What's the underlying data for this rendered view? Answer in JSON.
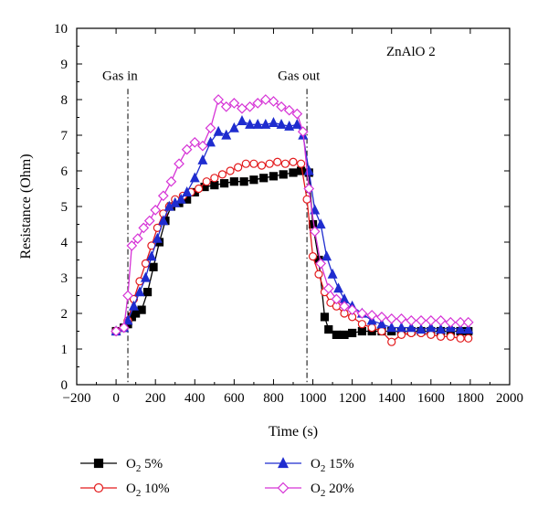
{
  "chart_data": {
    "type": "line",
    "title": "ZnAlO 2",
    "xlabel": "Time (s)",
    "ylabel": "Resistance (Ohm)",
    "xlim": [
      -200,
      2000
    ],
    "ylim": [
      0,
      10
    ],
    "xticks": [
      "−200",
      "0",
      "200",
      "400",
      "600",
      "800",
      "1000",
      "1200",
      "1400",
      "1600",
      "1800",
      "2000"
    ],
    "xtick_values": [
      -200,
      0,
      200,
      400,
      600,
      800,
      1000,
      1200,
      1400,
      1600,
      1800,
      2000
    ],
    "yticks": [
      "0",
      "1",
      "2",
      "3",
      "4",
      "5",
      "6",
      "7",
      "8",
      "9",
      "10"
    ],
    "ytick_values": [
      0,
      1,
      2,
      3,
      4,
      5,
      6,
      7,
      8,
      9,
      10
    ],
    "grid": false,
    "legend_position": "bottom",
    "annotations": [
      {
        "text": "Gas in",
        "x": 60
      },
      {
        "text": "Gas out",
        "x": 970
      }
    ],
    "series": [
      {
        "name": "O2 5%",
        "legend_main": "O",
        "legend_sub": "2",
        "legend_rest": " 5%",
        "color": "#000000",
        "marker": "square",
        "filled": true,
        "points": [
          [
            0,
            1.5
          ],
          [
            40,
            1.6
          ],
          [
            60,
            1.7
          ],
          [
            80,
            1.9
          ],
          [
            100,
            2.0
          ],
          [
            130,
            2.1
          ],
          [
            160,
            2.6
          ],
          [
            190,
            3.3
          ],
          [
            220,
            4.0
          ],
          [
            250,
            4.6
          ],
          [
            280,
            5.0
          ],
          [
            320,
            5.1
          ],
          [
            360,
            5.2
          ],
          [
            400,
            5.4
          ],
          [
            450,
            5.55
          ],
          [
            500,
            5.6
          ],
          [
            550,
            5.65
          ],
          [
            600,
            5.7
          ],
          [
            650,
            5.7
          ],
          [
            700,
            5.75
          ],
          [
            750,
            5.8
          ],
          [
            800,
            5.85
          ],
          [
            850,
            5.9
          ],
          [
            900,
            5.95
          ],
          [
            940,
            6.0
          ],
          [
            980,
            5.95
          ],
          [
            1000,
            4.5
          ],
          [
            1030,
            3.5
          ],
          [
            1060,
            1.9
          ],
          [
            1080,
            1.55
          ],
          [
            1120,
            1.4
          ],
          [
            1160,
            1.4
          ],
          [
            1200,
            1.45
          ],
          [
            1250,
            1.5
          ],
          [
            1300,
            1.5
          ],
          [
            1350,
            1.5
          ],
          [
            1400,
            1.5
          ],
          [
            1450,
            1.5
          ],
          [
            1500,
            1.5
          ],
          [
            1550,
            1.5
          ],
          [
            1600,
            1.5
          ],
          [
            1650,
            1.5
          ],
          [
            1700,
            1.5
          ],
          [
            1750,
            1.5
          ],
          [
            1790,
            1.5
          ]
        ]
      },
      {
        "name": "O2 10%",
        "legend_main": "O",
        "legend_sub": "2",
        "legend_rest": " 10%",
        "color": "#e31a1c",
        "marker": "circle",
        "filled": false,
        "points": [
          [
            0,
            1.5
          ],
          [
            40,
            1.6
          ],
          [
            60,
            1.8
          ],
          [
            90,
            2.4
          ],
          [
            120,
            2.9
          ],
          [
            150,
            3.4
          ],
          [
            180,
            3.9
          ],
          [
            210,
            4.4
          ],
          [
            240,
            4.8
          ],
          [
            270,
            5.0
          ],
          [
            300,
            5.2
          ],
          [
            340,
            5.3
          ],
          [
            380,
            5.4
          ],
          [
            420,
            5.5
          ],
          [
            460,
            5.7
          ],
          [
            500,
            5.8
          ],
          [
            540,
            5.9
          ],
          [
            580,
            6.0
          ],
          [
            620,
            6.1
          ],
          [
            660,
            6.2
          ],
          [
            700,
            6.2
          ],
          [
            740,
            6.15
          ],
          [
            780,
            6.2
          ],
          [
            820,
            6.25
          ],
          [
            860,
            6.2
          ],
          [
            900,
            6.25
          ],
          [
            940,
            6.2
          ],
          [
            970,
            5.2
          ],
          [
            1000,
            3.6
          ],
          [
            1030,
            3.1
          ],
          [
            1060,
            2.6
          ],
          [
            1090,
            2.3
          ],
          [
            1120,
            2.2
          ],
          [
            1160,
            2.0
          ],
          [
            1200,
            1.9
          ],
          [
            1250,
            1.7
          ],
          [
            1300,
            1.6
          ],
          [
            1350,
            1.5
          ],
          [
            1400,
            1.2
          ],
          [
            1450,
            1.4
          ],
          [
            1500,
            1.45
          ],
          [
            1550,
            1.45
          ],
          [
            1600,
            1.4
          ],
          [
            1650,
            1.35
          ],
          [
            1700,
            1.35
          ],
          [
            1750,
            1.3
          ],
          [
            1790,
            1.3
          ]
        ]
      },
      {
        "name": "O2 15%",
        "legend_main": "O",
        "legend_sub": "2",
        "legend_rest": " 15%",
        "color": "#1f2ccf",
        "marker": "triangle",
        "filled": true,
        "points": [
          [
            0,
            1.5
          ],
          [
            40,
            1.6
          ],
          [
            60,
            1.8
          ],
          [
            90,
            2.2
          ],
          [
            120,
            2.6
          ],
          [
            150,
            3.0
          ],
          [
            180,
            3.6
          ],
          [
            210,
            4.1
          ],
          [
            240,
            4.6
          ],
          [
            270,
            5.0
          ],
          [
            300,
            5.1
          ],
          [
            330,
            5.2
          ],
          [
            360,
            5.4
          ],
          [
            400,
            5.8
          ],
          [
            440,
            6.3
          ],
          [
            480,
            6.8
          ],
          [
            520,
            7.1
          ],
          [
            560,
            7.0
          ],
          [
            600,
            7.2
          ],
          [
            640,
            7.4
          ],
          [
            680,
            7.3
          ],
          [
            720,
            7.3
          ],
          [
            760,
            7.3
          ],
          [
            800,
            7.35
          ],
          [
            840,
            7.3
          ],
          [
            880,
            7.25
          ],
          [
            920,
            7.3
          ],
          [
            950,
            7.0
          ],
          [
            980,
            6.0
          ],
          [
            1010,
            4.9
          ],
          [
            1040,
            4.5
          ],
          [
            1070,
            3.6
          ],
          [
            1100,
            3.1
          ],
          [
            1130,
            2.7
          ],
          [
            1160,
            2.4
          ],
          [
            1200,
            2.2
          ],
          [
            1250,
            2.0
          ],
          [
            1300,
            1.8
          ],
          [
            1350,
            1.7
          ],
          [
            1400,
            1.6
          ],
          [
            1450,
            1.6
          ],
          [
            1500,
            1.6
          ],
          [
            1550,
            1.55
          ],
          [
            1600,
            1.6
          ],
          [
            1650,
            1.55
          ],
          [
            1700,
            1.6
          ],
          [
            1750,
            1.55
          ],
          [
            1790,
            1.55
          ]
        ]
      },
      {
        "name": "O2 20%",
        "legend_main": "O",
        "legend_sub": "2",
        "legend_rest": " 20%",
        "color": "#d633d6",
        "marker": "diamond",
        "filled": false,
        "points": [
          [
            0,
            1.5
          ],
          [
            40,
            1.6
          ],
          [
            60,
            2.5
          ],
          [
            80,
            3.9
          ],
          [
            110,
            4.1
          ],
          [
            140,
            4.4
          ],
          [
            170,
            4.6
          ],
          [
            200,
            4.9
          ],
          [
            240,
            5.3
          ],
          [
            280,
            5.7
          ],
          [
            320,
            6.2
          ],
          [
            360,
            6.6
          ],
          [
            400,
            6.8
          ],
          [
            440,
            6.7
          ],
          [
            480,
            7.2
          ],
          [
            520,
            8.0
          ],
          [
            560,
            7.8
          ],
          [
            600,
            7.9
          ],
          [
            640,
            7.75
          ],
          [
            680,
            7.8
          ],
          [
            720,
            7.9
          ],
          [
            760,
            8.0
          ],
          [
            800,
            7.95
          ],
          [
            840,
            7.8
          ],
          [
            880,
            7.7
          ],
          [
            920,
            7.6
          ],
          [
            950,
            7.1
          ],
          [
            980,
            5.5
          ],
          [
            1010,
            4.3
          ],
          [
            1040,
            3.4
          ],
          [
            1080,
            2.7
          ],
          [
            1120,
            2.4
          ],
          [
            1160,
            2.2
          ],
          [
            1200,
            2.1
          ],
          [
            1250,
            2.0
          ],
          [
            1300,
            1.95
          ],
          [
            1350,
            1.9
          ],
          [
            1400,
            1.85
          ],
          [
            1450,
            1.85
          ],
          [
            1500,
            1.8
          ],
          [
            1550,
            1.8
          ],
          [
            1600,
            1.8
          ],
          [
            1650,
            1.8
          ],
          [
            1700,
            1.75
          ],
          [
            1750,
            1.75
          ],
          [
            1790,
            1.75
          ]
        ]
      }
    ]
  }
}
